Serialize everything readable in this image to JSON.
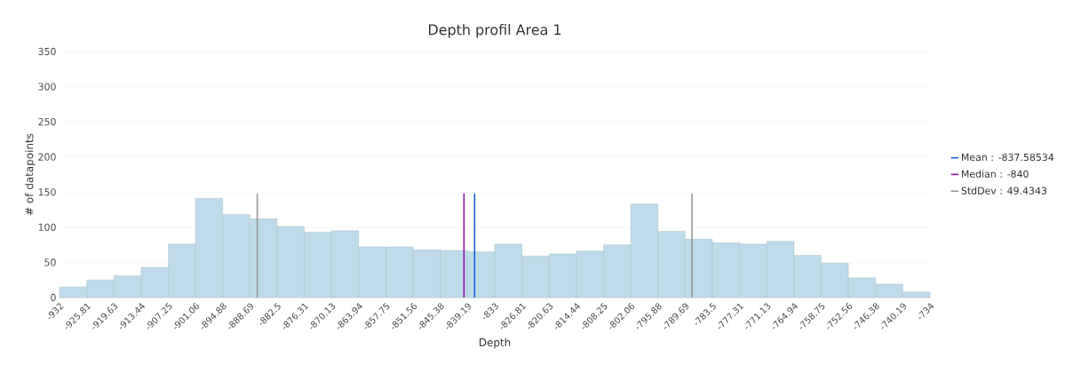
{
  "chart_data": {
    "type": "histogram",
    "title": "Depth profil Area 1",
    "xlabel": "Depth",
    "ylabel": "# of datapoints",
    "bins": [
      -932,
      -925.81,
      -919.63,
      -913.44,
      -907.25,
      -901.06,
      -894.88,
      -888.69,
      -882.5,
      -876.31,
      -870.13,
      -863.94,
      -857.75,
      -851.56,
      -845.38,
      -839.19,
      -833,
      -826.81,
      -820.63,
      -814.44,
      -808.25,
      -802.06,
      -795.88,
      -789.69,
      -783.5,
      -777.31,
      -771.13,
      -764.94,
      -758.75,
      -752.56,
      -746.38,
      -740.19,
      -734
    ],
    "values": [
      15,
      25,
      31,
      43,
      76,
      141,
      118,
      112,
      101,
      93,
      95,
      72,
      72,
      68,
      67,
      65,
      76,
      59,
      62,
      66,
      75,
      133,
      94,
      83,
      78,
      76,
      80,
      60,
      49,
      28,
      19,
      8
    ],
    "color": "#bfdbe9",
    "xlim": [
      -932,
      -734
    ],
    "xticks": [
      {
        "value": -932,
        "label": "-932"
      },
      {
        "value": -925.81,
        "label": "-925.81"
      },
      {
        "value": -919.63,
        "label": "-919.63"
      },
      {
        "value": -913.44,
        "label": "-913.44"
      },
      {
        "value": -907.25,
        "label": "-907.25"
      },
      {
        "value": -901.06,
        "label": "-901.06"
      },
      {
        "value": -894.88,
        "label": "-894.88"
      },
      {
        "value": -888.69,
        "label": "-888.69"
      },
      {
        "value": -882.5,
        "label": "-882.5"
      },
      {
        "value": -876.31,
        "label": "-876.31"
      },
      {
        "value": -870.13,
        "label": "-870.13"
      },
      {
        "value": -863.94,
        "label": "-863.94"
      },
      {
        "value": -857.75,
        "label": "-857.75"
      },
      {
        "value": -851.56,
        "label": "-851.56"
      },
      {
        "value": -845.38,
        "label": "-845.38"
      },
      {
        "value": -839.19,
        "label": "-839.19"
      },
      {
        "value": -833,
        "label": "-833"
      },
      {
        "value": -826.81,
        "label": "-826.81"
      },
      {
        "value": -820.63,
        "label": "-820.63"
      },
      {
        "value": -814.44,
        "label": "-814.44"
      },
      {
        "value": -808.25,
        "label": "-808.25"
      },
      {
        "value": -802.06,
        "label": "-802.06"
      },
      {
        "value": -795.88,
        "label": "-795.88"
      },
      {
        "value": -789.69,
        "label": "-789.69"
      },
      {
        "value": -783.5,
        "label": "-783.5"
      },
      {
        "value": -777.31,
        "label": "-777.31"
      },
      {
        "value": -771.13,
        "label": "-771.13"
      },
      {
        "value": -764.94,
        "label": "-764.94"
      },
      {
        "value": -758.75,
        "label": "-758.75"
      },
      {
        "value": -752.56,
        "label": "-752.56"
      },
      {
        "value": -746.38,
        "label": "-746.38"
      },
      {
        "value": -740.19,
        "label": "-740.19"
      },
      {
        "value": -734,
        "label": "-734"
      }
    ],
    "ylim": [
      0,
      350
    ],
    "yticks": [
      0,
      50,
      100,
      150,
      200,
      250,
      300,
      350
    ],
    "grid": "y",
    "legend": "right",
    "annotations": [
      "StdDev : 49.4343"
    ],
    "ref_lines": [
      {
        "axis": "x",
        "value": -837.58534,
        "label": "Mean : -837.58534",
        "color": "#1a5fd6"
      },
      {
        "axis": "x",
        "value": -840,
        "label": "Median : -840",
        "color": "#8a17a8"
      },
      {
        "axis": "x",
        "value": -887.02,
        "label": null,
        "color": "#999999"
      },
      {
        "axis": "x",
        "value": -788.15,
        "label": null,
        "color": "#999999"
      }
    ]
  }
}
